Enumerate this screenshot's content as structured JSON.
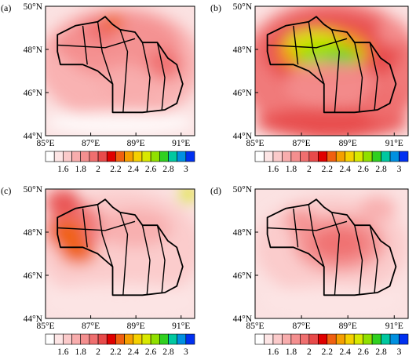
{
  "panels": [
    {
      "label": "(a)"
    },
    {
      "label": "(b)"
    },
    {
      "label": "(c)"
    },
    {
      "label": "(d)"
    }
  ],
  "axes": {
    "lat_ticks": [
      "50°N",
      "48°N",
      "46°N",
      "44°N"
    ],
    "lon_ticks": [
      "85°E",
      "87°E",
      "89°E",
      "91°E"
    ]
  },
  "colorbar": {
    "labels": [
      "1.6",
      "1.8",
      "2",
      "2.2",
      "2.4",
      "2.6",
      "2.8",
      "3"
    ],
    "colors": [
      "#ffffff",
      "#fde5e5",
      "#fbcaca",
      "#f8adad",
      "#f48f8f",
      "#ef6f6f",
      "#e84a4a",
      "#e00000",
      "#f06010",
      "#f59f00",
      "#f5d000",
      "#d8e800",
      "#90e000",
      "#30d020",
      "#00c8a0",
      "#0090e0",
      "#0030f0"
    ]
  }
}
